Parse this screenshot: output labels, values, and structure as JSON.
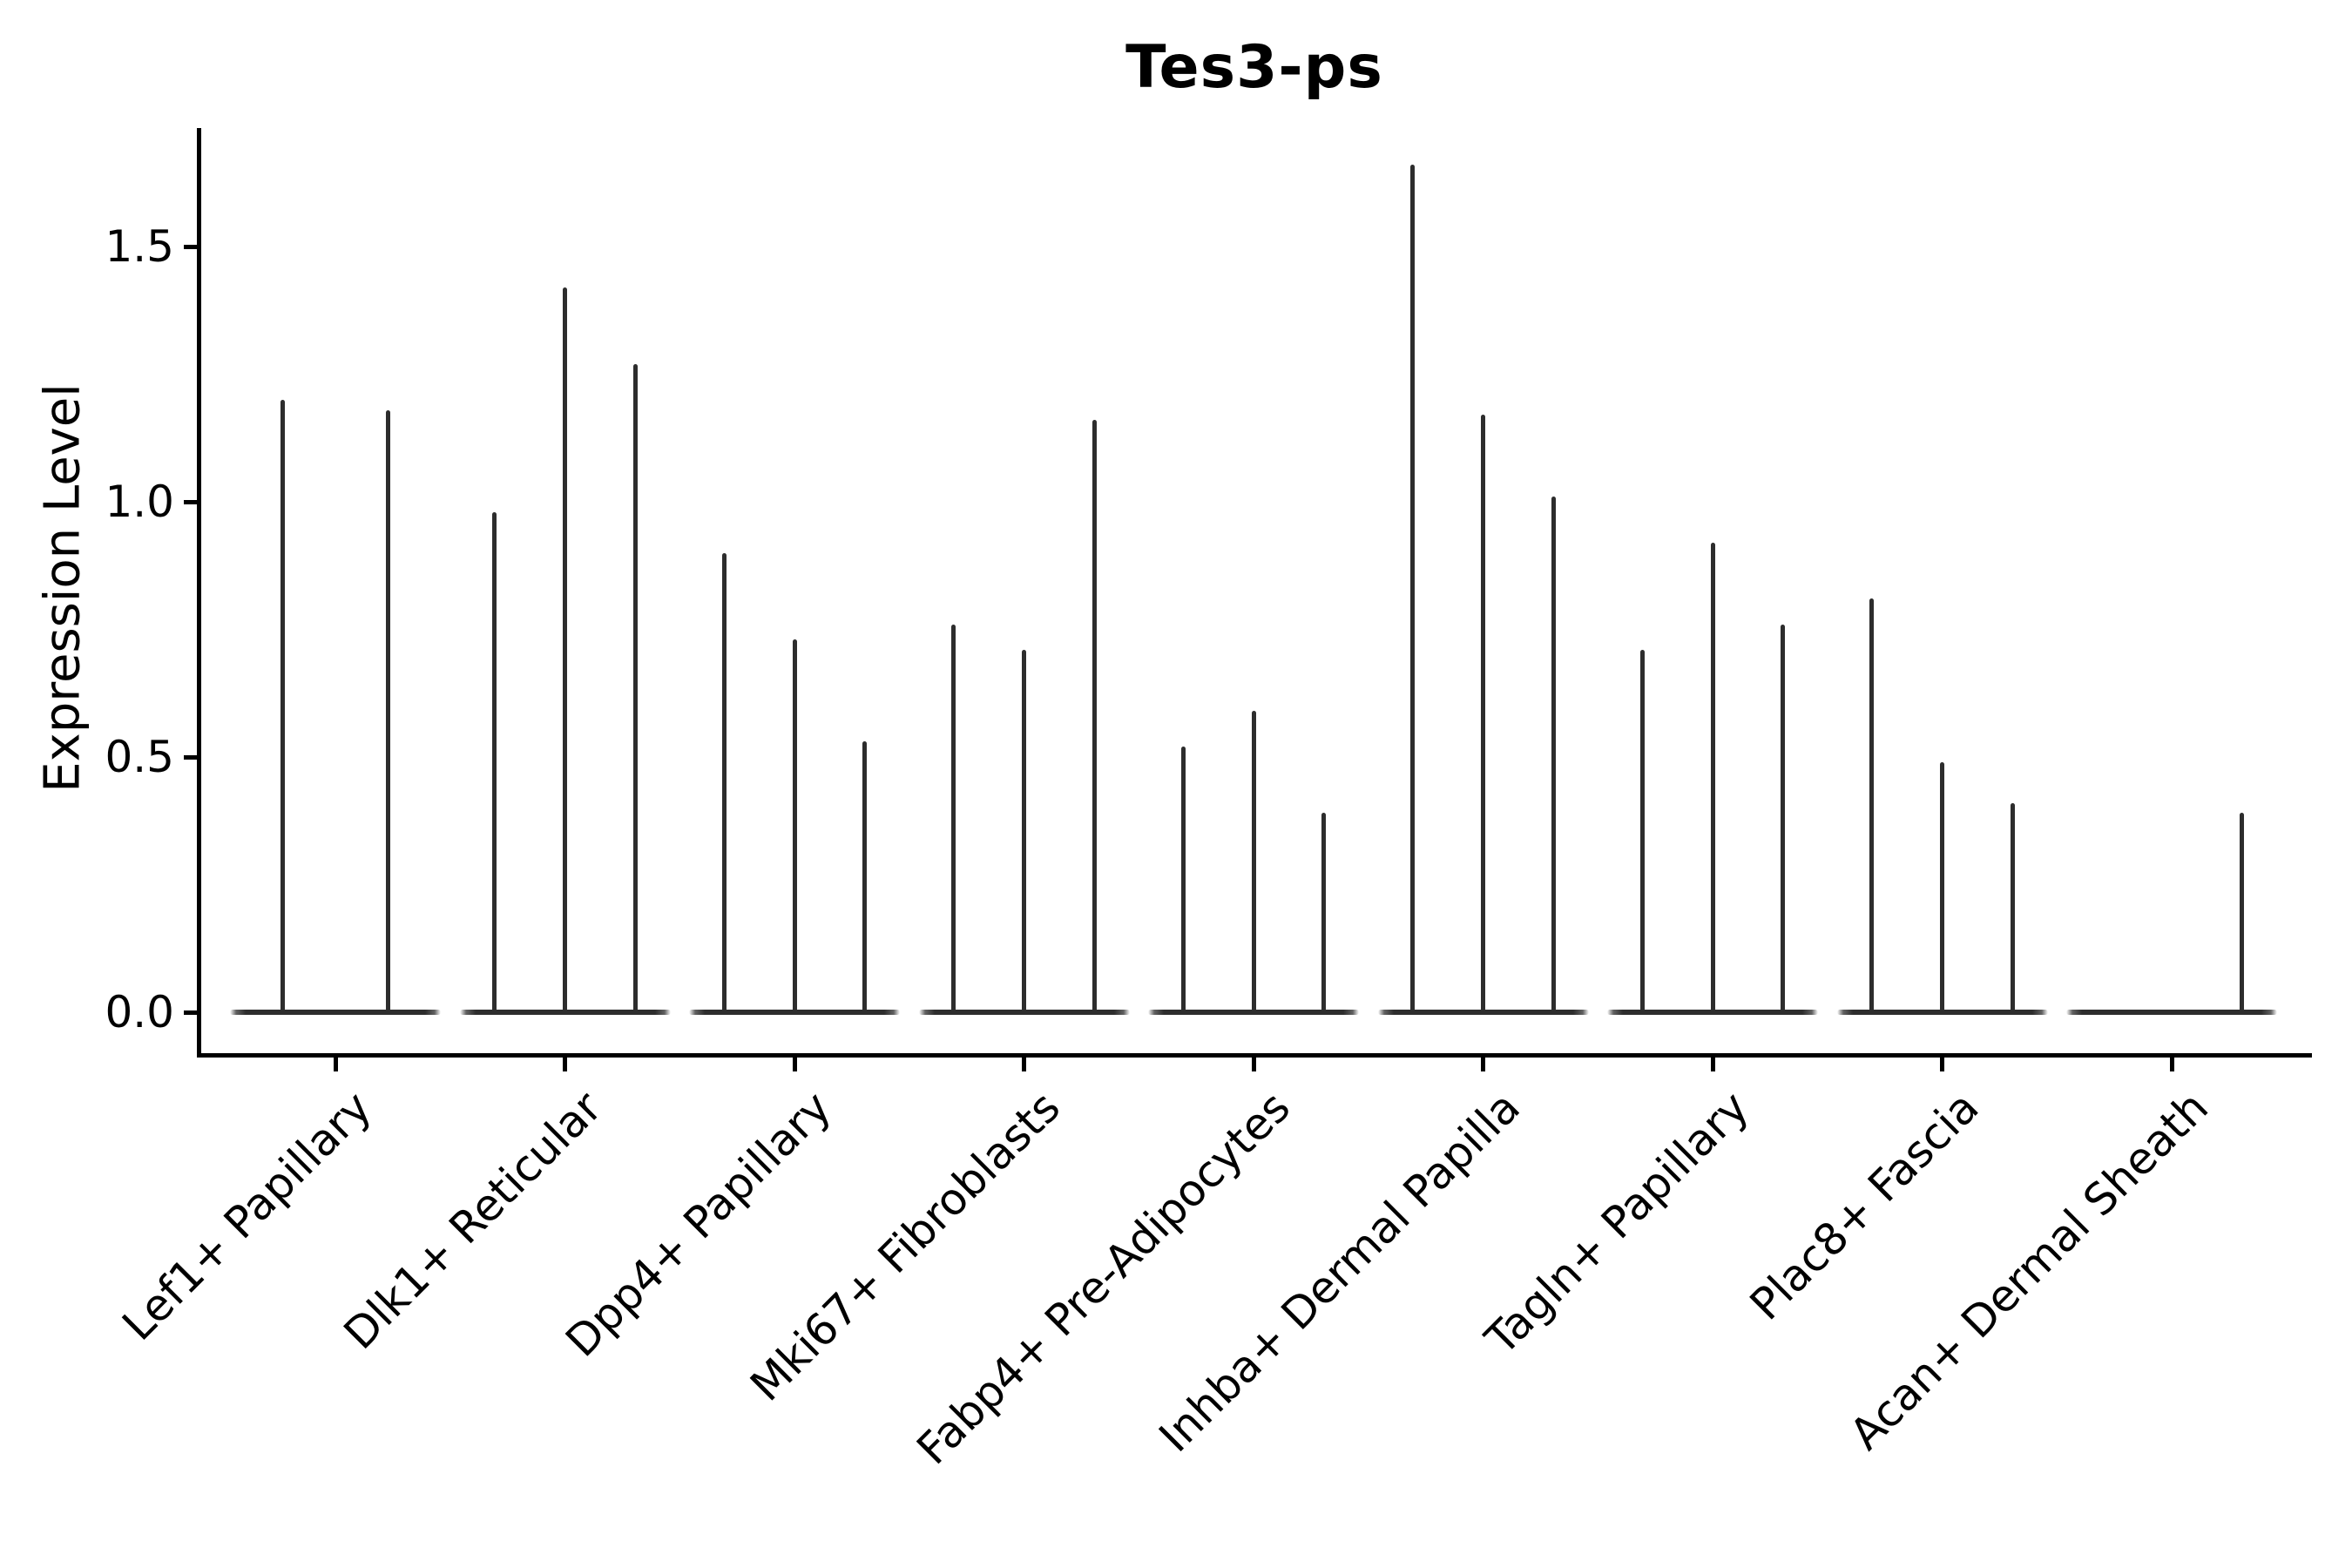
{
  "figure": {
    "title": "Tes3-ps",
    "background": "#ffffff"
  },
  "chart_data": {
    "type": "violin",
    "title": "Tes3-ps",
    "xlabel": "",
    "ylabel": "Expression Level",
    "yticks": [
      0.0,
      0.5,
      1.0,
      1.5
    ],
    "ytick_labels": [
      "0.0",
      "0.5",
      "1.0",
      "1.5"
    ],
    "ylim": [
      -0.08,
      1.73
    ],
    "grid": false,
    "legend_position": "none",
    "violin_style": "needle-thin dark spikes rising from a flat baseline at 0; multiple violins per category",
    "categories": [
      "Lef1+ Papillary",
      "Dlk1+ Reticular",
      "Dpp4+ Papillary",
      "Mki67+ Fibroblasts",
      "Fabp4+ Pre-Adipocytes",
      "Inhba+ Dermal Papilla",
      "Tagln+ Papillary",
      "Plac8+ Fascia",
      "Acan+ Dermal Sheath"
    ],
    "groups": [
      {
        "label": "Lef1+ Papillary",
        "max_expression_per_violin": [
          1.2,
          1.18
        ]
      },
      {
        "label": "Dlk1+ Reticular",
        "max_expression_per_violin": [
          0.98,
          1.42,
          1.27
        ]
      },
      {
        "label": "Dpp4+ Papillary",
        "max_expression_per_violin": [
          0.9,
          0.73,
          0.53
        ]
      },
      {
        "label": "Mki67+ Fibroblasts",
        "max_expression_per_violin": [
          0.76,
          0.71,
          1.16
        ]
      },
      {
        "label": "Fabp4+ Pre-Adipocytes",
        "max_expression_per_violin": [
          0.52,
          0.59,
          0.39
        ]
      },
      {
        "label": "Inhba+ Dermal Papilla",
        "max_expression_per_violin": [
          1.66,
          1.17,
          1.01
        ]
      },
      {
        "label": "Tagln+ Papillary",
        "max_expression_per_violin": [
          0.71,
          0.92,
          0.76
        ]
      },
      {
        "label": "Plac8+ Fascia",
        "max_expression_per_violin": [
          0.81,
          0.49,
          0.41
        ]
      },
      {
        "label": "Acan+ Dermal Sheath",
        "max_expression_per_violin": [
          null,
          null,
          0.39
        ]
      }
    ]
  },
  "colors": {
    "violin": "#2d2d2d",
    "axis": "#000000",
    "text": "#000000",
    "background": "#ffffff"
  }
}
